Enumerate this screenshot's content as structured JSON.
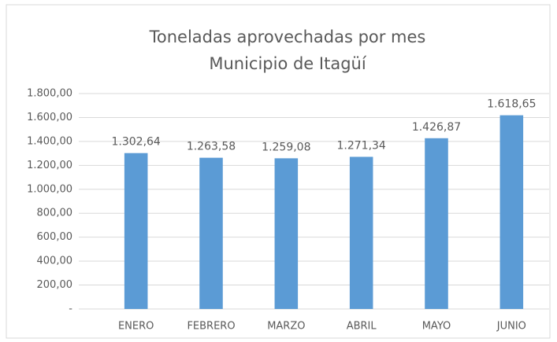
{
  "chart_data": {
    "type": "bar",
    "title": "Toneladas aprovechadas por mes",
    "subtitle": "Municipio de Itagüí",
    "categories": [
      "ENERO",
      "FEBRERO",
      "MARZO",
      "ABRIL",
      "MAYO",
      "JUNIO"
    ],
    "values": [
      1302.64,
      1263.58,
      1259.08,
      1271.34,
      1426.87,
      1618.65
    ],
    "value_labels": [
      "1.302,64",
      "1.263,58",
      "1.259,08",
      "1.271,34",
      "1.426,87",
      "1.618,65"
    ],
    "color": "#5b9bd5",
    "ylim": [
      0,
      1800
    ],
    "yticks": [
      {
        "value": 0,
        "label": "-"
      },
      {
        "value": 200,
        "label": "200,00"
      },
      {
        "value": 400,
        "label": "400,00"
      },
      {
        "value": 600,
        "label": "600,00"
      },
      {
        "value": 800,
        "label": "800,00"
      },
      {
        "value": 1000,
        "label": "1.000,00"
      },
      {
        "value": 1200,
        "label": "1.200,00"
      },
      {
        "value": 1400,
        "label": "1.400,00"
      },
      {
        "value": 1600,
        "label": "1.600,00"
      },
      {
        "value": 1800,
        "label": "1.800,00"
      }
    ],
    "grid": true
  }
}
